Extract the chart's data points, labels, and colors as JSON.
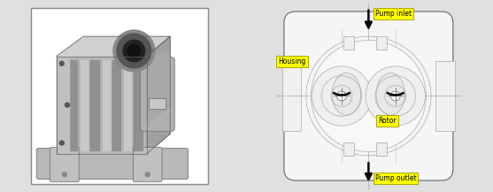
{
  "bg_color": "#e0e0e0",
  "label_pump_inlet": "Pump inlet",
  "label_pump_outlet": "Pump outlet",
  "label_housing": "Housing",
  "label_rotor": "Rotor",
  "label_fontsize": 5.5,
  "lc": "#aaaaaa",
  "hc": "#666666",
  "dark": "#333333",
  "arrow_color": "#000000",
  "label_bg": "#ffff00",
  "diagram_bg": "#ffffff",
  "left_bg": "#ffffff"
}
